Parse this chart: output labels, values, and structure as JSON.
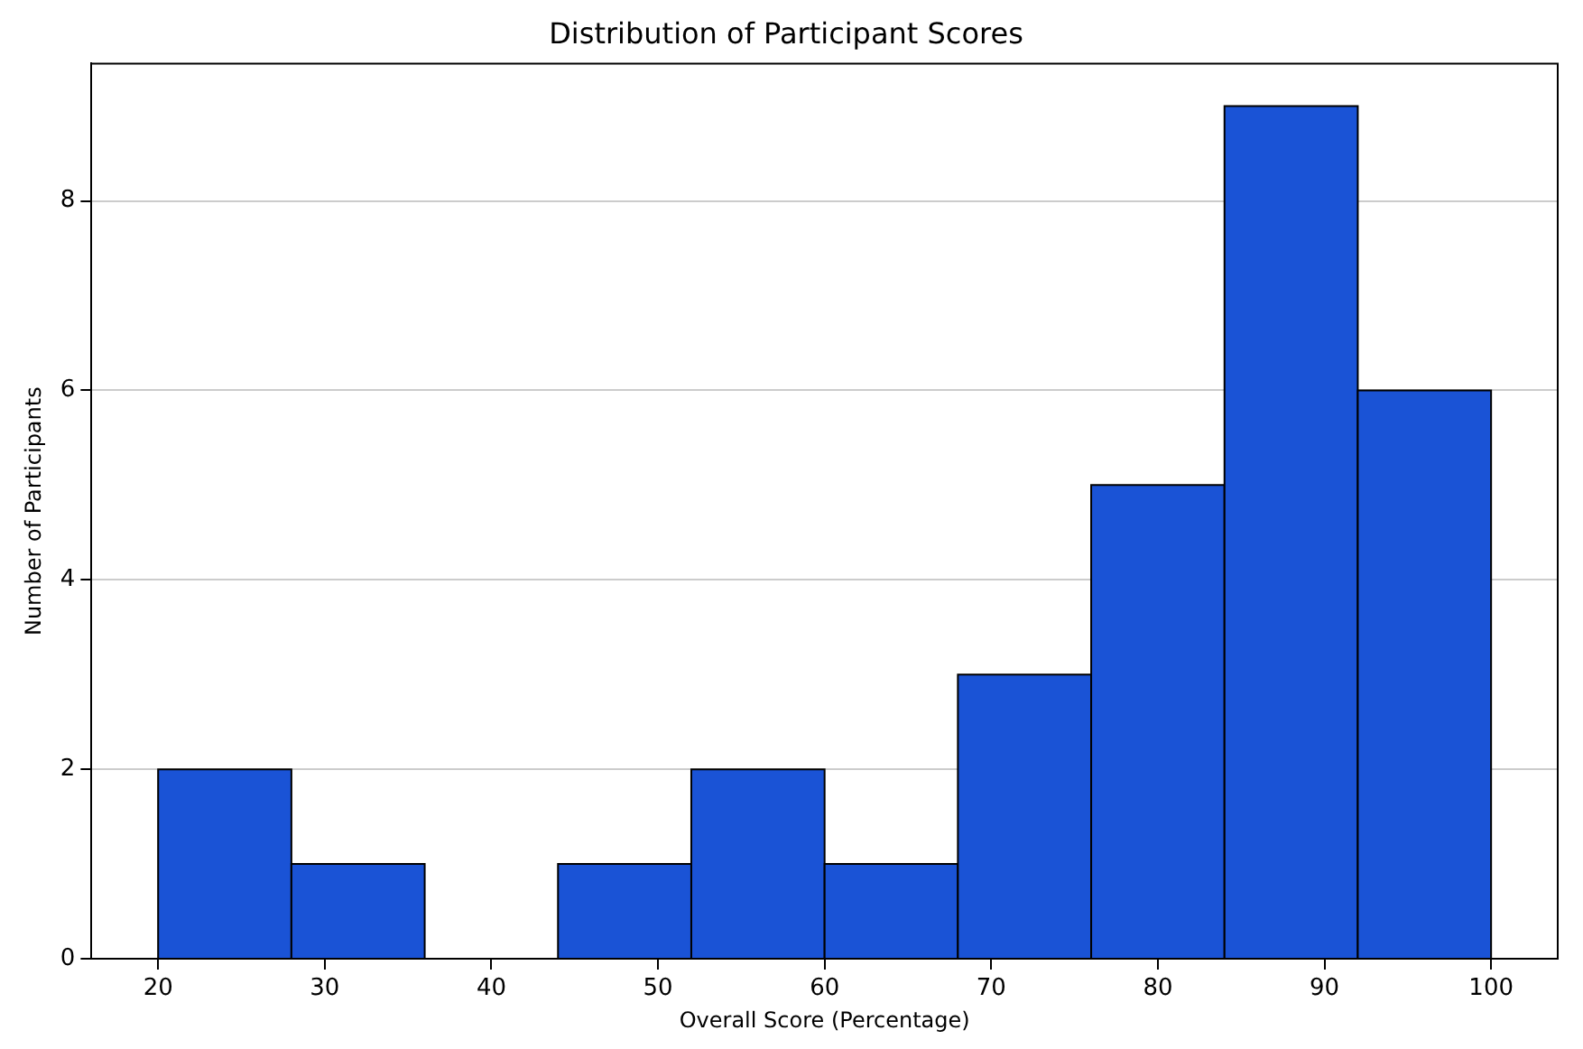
{
  "chart_data": {
    "type": "histogram",
    "title": "Distribution of Participant Scores",
    "xlabel": "Overall Score (Percentage)",
    "ylabel": "Number of Participants",
    "bins": [
      20,
      28,
      36,
      44,
      52,
      60,
      68,
      76,
      84,
      92,
      100
    ],
    "values": [
      2,
      1,
      0,
      1,
      2,
      1,
      3,
      5,
      9,
      6
    ],
    "color": "#1a53d6",
    "xlim": [
      16,
      104
    ],
    "xticks": [
      20,
      30,
      40,
      50,
      60,
      70,
      80,
      90,
      100
    ],
    "ylim": [
      0,
      9.45
    ],
    "yticks": [
      0,
      2,
      4,
      6,
      8
    ],
    "grid": "y",
    "legend": false
  }
}
